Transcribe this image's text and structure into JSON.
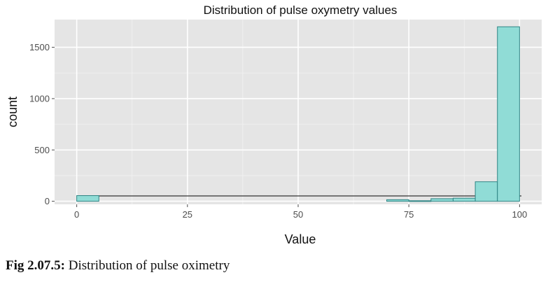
{
  "chart_data": {
    "type": "bar",
    "title": "Distribution of pulse oxymetry values",
    "xlabel": "Value",
    "ylabel": "count",
    "xlim": [
      -5,
      105
    ],
    "ylim": [
      -30,
      1770
    ],
    "xticks": [
      0,
      25,
      50,
      75,
      100
    ],
    "yticks": [
      0,
      500,
      1000,
      1500
    ],
    "grid": true,
    "background": "#e5e5e5",
    "bar_fill": "#90dcd6",
    "bar_stroke": "#2f8585",
    "bin_width": 5,
    "bins": [
      {
        "start": 0,
        "end": 5,
        "count": 55
      },
      {
        "start": 70,
        "end": 75,
        "count": 15
      },
      {
        "start": 75,
        "end": 80,
        "count": 5
      },
      {
        "start": 80,
        "end": 85,
        "count": 25
      },
      {
        "start": 85,
        "end": 90,
        "count": 30
      },
      {
        "start": 90,
        "end": 95,
        "count": 190
      },
      {
        "start": 95,
        "end": 100,
        "count": 1700
      }
    ]
  },
  "caption": {
    "label": "Fig 2.07.5:",
    "text": "Distribution of pulse oximetry"
  }
}
